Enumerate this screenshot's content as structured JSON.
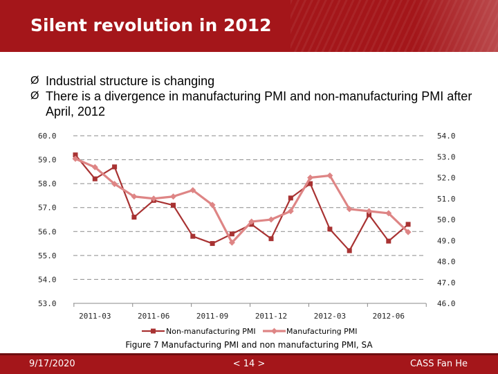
{
  "slide": {
    "title": "Silent revolution in 2012",
    "bullets": [
      "Industrial structure is changing",
      "There is a divergence in manufacturing PMI and non-manufacturing PMI after April, 2012"
    ],
    "bullet_marker": "Ø",
    "caption": "Figure 7 Manufacturing PMI and non manufacturing PMI, SA",
    "footer": {
      "date": "9/17/2020",
      "page": "< 14 >",
      "org": "CASS Fan He"
    }
  },
  "colors": {
    "header": "#a4161a",
    "non_manufacturing": "#a83232",
    "manufacturing": "#de8585",
    "grid": "#8a8a8a"
  },
  "chart_data": {
    "type": "line",
    "x_tick_labels": [
      "2011-03",
      "2011-06",
      "2011-09",
      "2011-12",
      "2012-03",
      "2012-06"
    ],
    "x_tick_index": [
      1,
      4,
      7,
      10,
      13,
      16
    ],
    "x": [
      "2011-02",
      "2011-03",
      "2011-04",
      "2011-05",
      "2011-06",
      "2011-07",
      "2011-08",
      "2011-09",
      "2011-10",
      "2011-11",
      "2011-12",
      "2012-01",
      "2012-02",
      "2012-03",
      "2012-04",
      "2012-05",
      "2012-06",
      "2012-07",
      "2012-08"
    ],
    "left_axis": {
      "ylim": [
        53.0,
        60.0
      ],
      "ticks": [
        "60.0",
        "59.0",
        "58.0",
        "57.0",
        "56.0",
        "55.0",
        "54.0",
        "53.0"
      ]
    },
    "right_axis": {
      "ylim": [
        46.0,
        54.0
      ],
      "ticks": [
        "54.0",
        "53.0",
        "52.0",
        "51.0",
        "50.0",
        "49.0",
        "48.0",
        "47.0",
        "46.0"
      ]
    },
    "grid": true,
    "legend_position": "bottom",
    "series": [
      {
        "name": "Non-manufacturing PMI",
        "axis": "left",
        "marker": "square",
        "values": [
          59.2,
          58.2,
          58.7,
          56.6,
          57.3,
          57.1,
          55.8,
          55.5,
          55.9,
          56.3,
          55.7,
          57.4,
          58.0,
          56.1,
          55.2,
          56.7,
          55.6,
          56.3,
          null
        ]
      },
      {
        "name": "Manufacturing PMI",
        "axis": "right",
        "marker": "diamond",
        "values": [
          52.9,
          52.5,
          51.7,
          51.1,
          51.0,
          51.1,
          51.4,
          50.7,
          48.9,
          49.9,
          50.0,
          50.4,
          52.0,
          52.1,
          50.5,
          50.4,
          50.3,
          49.4,
          null
        ]
      }
    ]
  }
}
